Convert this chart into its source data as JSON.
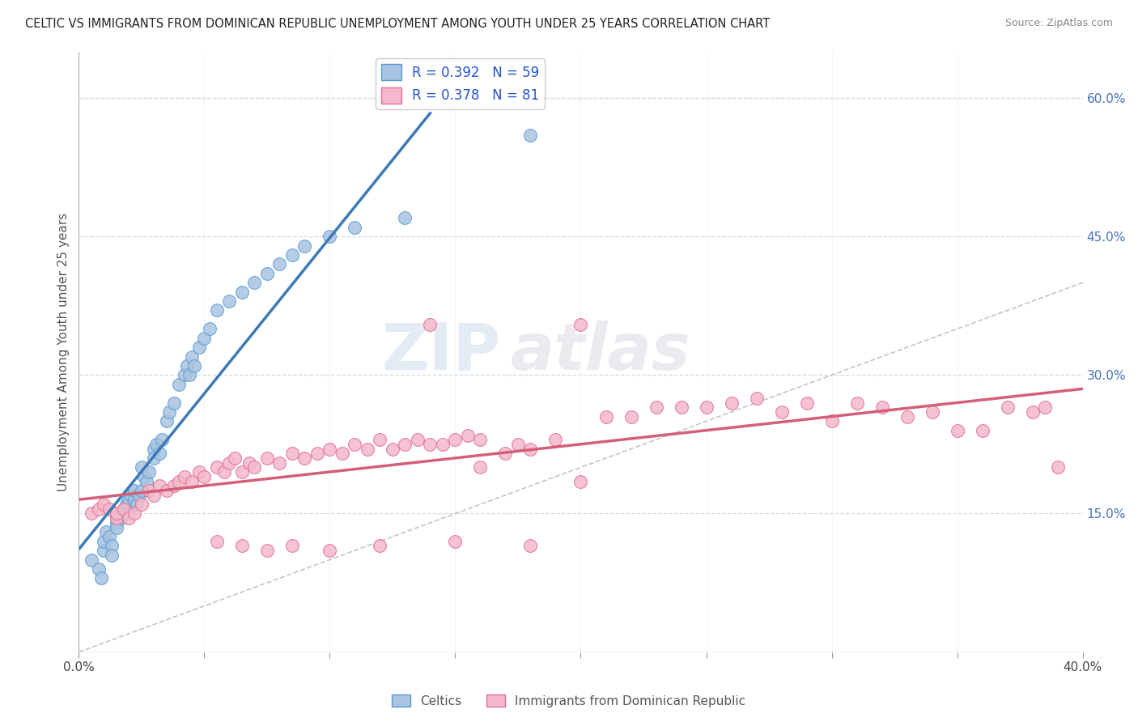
{
  "title": "CELTIC VS IMMIGRANTS FROM DOMINICAN REPUBLIC UNEMPLOYMENT AMONG YOUTH UNDER 25 YEARS CORRELATION CHART",
  "source": "Source: ZipAtlas.com",
  "ylabel": "Unemployment Among Youth under 25 years",
  "xlim": [
    0.0,
    0.4
  ],
  "ylim": [
    0.0,
    0.65
  ],
  "xticks": [
    0.0,
    0.05,
    0.1,
    0.15,
    0.2,
    0.25,
    0.3,
    0.35,
    0.4
  ],
  "xticklabels": [
    "0.0%",
    "",
    "",
    "",
    "",
    "",
    "",
    "",
    "40.0%"
  ],
  "yticks_right": [
    0.15,
    0.3,
    0.45,
    0.6
  ],
  "yticklabels_right": [
    "15.0%",
    "30.0%",
    "45.0%",
    "60.0%"
  ],
  "celtics_R": 0.392,
  "celtics_N": 59,
  "dr_R": 0.378,
  "dr_N": 81,
  "celtics_color": "#a8c4e0",
  "celtics_edge_color": "#5b9bd5",
  "celtics_line_color": "#3d7ab5",
  "dr_color": "#f4b8ca",
  "dr_edge_color": "#e07090",
  "dr_line_color": "#d45f7a",
  "diagonal_color": "#b0b8c0",
  "watermark_zip": "ZIP",
  "watermark_atlas": "atlas",
  "background_color": "#ffffff",
  "grid_color": "#d0d8e0",
  "celtics_x": [
    0.005,
    0.008,
    0.009,
    0.01,
    0.01,
    0.011,
    0.012,
    0.013,
    0.013,
    0.015,
    0.015,
    0.015,
    0.016,
    0.017,
    0.018,
    0.018,
    0.019,
    0.02,
    0.02,
    0.02,
    0.021,
    0.022,
    0.022,
    0.023,
    0.024,
    0.025,
    0.025,
    0.026,
    0.027,
    0.028,
    0.03,
    0.03,
    0.031,
    0.032,
    0.033,
    0.035,
    0.036,
    0.038,
    0.04,
    0.042,
    0.043,
    0.044,
    0.045,
    0.046,
    0.048,
    0.05,
    0.052,
    0.055,
    0.06,
    0.065,
    0.07,
    0.075,
    0.08,
    0.085,
    0.09,
    0.1,
    0.11,
    0.13,
    0.18
  ],
  "celtics_y": [
    0.1,
    0.09,
    0.08,
    0.11,
    0.12,
    0.13,
    0.125,
    0.115,
    0.105,
    0.14,
    0.145,
    0.135,
    0.15,
    0.145,
    0.155,
    0.15,
    0.16,
    0.155,
    0.16,
    0.165,
    0.17,
    0.165,
    0.175,
    0.16,
    0.17,
    0.175,
    0.2,
    0.19,
    0.185,
    0.195,
    0.22,
    0.21,
    0.225,
    0.215,
    0.23,
    0.25,
    0.26,
    0.27,
    0.29,
    0.3,
    0.31,
    0.3,
    0.32,
    0.31,
    0.33,
    0.34,
    0.35,
    0.37,
    0.38,
    0.39,
    0.4,
    0.41,
    0.42,
    0.43,
    0.44,
    0.45,
    0.46,
    0.47,
    0.56
  ],
  "dr_x": [
    0.005,
    0.008,
    0.01,
    0.012,
    0.015,
    0.015,
    0.018,
    0.02,
    0.022,
    0.025,
    0.028,
    0.03,
    0.032,
    0.035,
    0.038,
    0.04,
    0.042,
    0.045,
    0.048,
    0.05,
    0.055,
    0.058,
    0.06,
    0.062,
    0.065,
    0.068,
    0.07,
    0.075,
    0.08,
    0.085,
    0.09,
    0.095,
    0.1,
    0.105,
    0.11,
    0.115,
    0.12,
    0.125,
    0.13,
    0.135,
    0.14,
    0.145,
    0.15,
    0.155,
    0.16,
    0.17,
    0.175,
    0.18,
    0.19,
    0.2,
    0.21,
    0.22,
    0.23,
    0.24,
    0.25,
    0.26,
    0.27,
    0.28,
    0.29,
    0.3,
    0.31,
    0.32,
    0.33,
    0.34,
    0.35,
    0.36,
    0.37,
    0.38,
    0.385,
    0.39,
    0.14,
    0.2,
    0.055,
    0.065,
    0.075,
    0.085,
    0.1,
    0.12,
    0.15,
    0.16,
    0.18
  ],
  "dr_y": [
    0.15,
    0.155,
    0.16,
    0.155,
    0.145,
    0.15,
    0.155,
    0.145,
    0.15,
    0.16,
    0.175,
    0.17,
    0.18,
    0.175,
    0.18,
    0.185,
    0.19,
    0.185,
    0.195,
    0.19,
    0.2,
    0.195,
    0.205,
    0.21,
    0.195,
    0.205,
    0.2,
    0.21,
    0.205,
    0.215,
    0.21,
    0.215,
    0.22,
    0.215,
    0.225,
    0.22,
    0.23,
    0.22,
    0.225,
    0.23,
    0.225,
    0.225,
    0.23,
    0.235,
    0.23,
    0.215,
    0.225,
    0.22,
    0.23,
    0.185,
    0.255,
    0.255,
    0.265,
    0.265,
    0.265,
    0.27,
    0.275,
    0.26,
    0.27,
    0.25,
    0.27,
    0.265,
    0.255,
    0.26,
    0.24,
    0.24,
    0.265,
    0.26,
    0.265,
    0.2,
    0.355,
    0.355,
    0.12,
    0.115,
    0.11,
    0.115,
    0.11,
    0.115,
    0.12,
    0.2,
    0.115
  ]
}
